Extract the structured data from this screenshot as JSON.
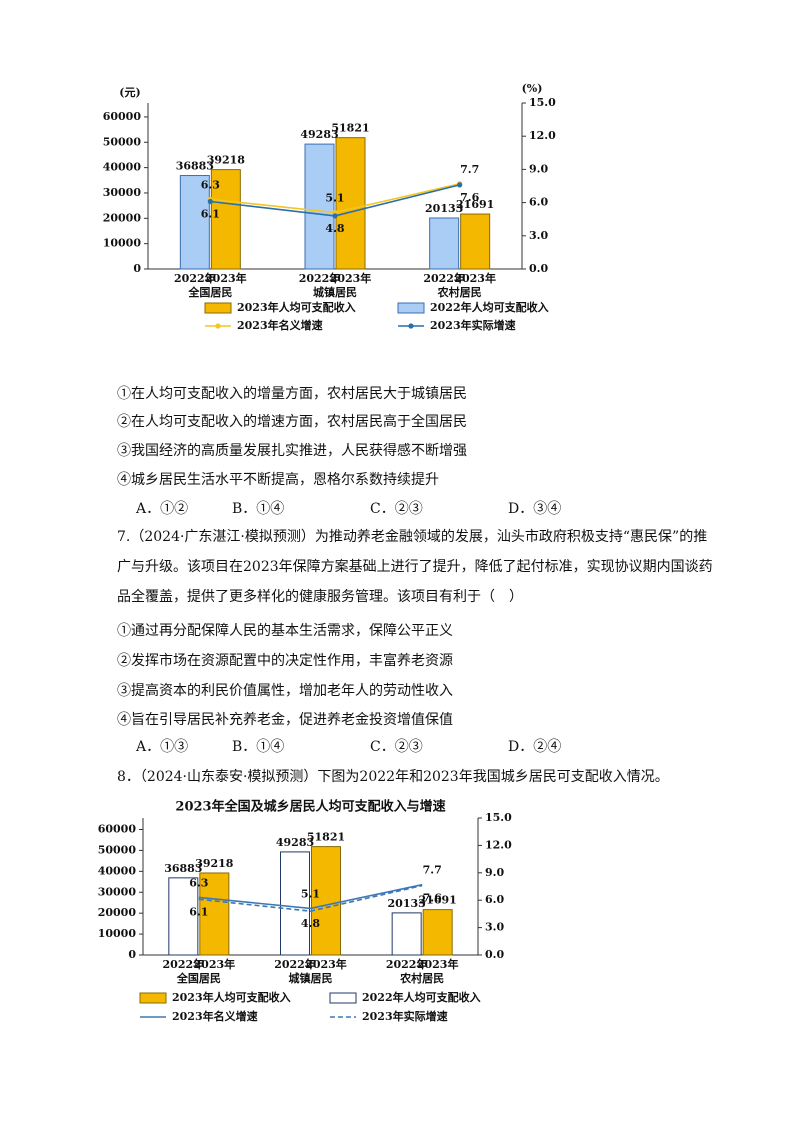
{
  "chart_data": [
    {
      "type": "bar",
      "y_label": "(元)",
      "y2_label": "(%)",
      "categories": [
        "全国居民",
        "城镇居民",
        "农村居民"
      ],
      "x_sublabels": [
        "2022年",
        "2023年"
      ],
      "series": [
        {
          "name": "2023年人均可支配收入",
          "color": "#f5b800",
          "edgecolor": "#8a6a00",
          "values": [
            39218,
            51821,
            21691
          ]
        },
        {
          "name": "2022年人均可支配收入",
          "color": "#a9cdf5",
          "edgecolor": "#3a6fb0",
          "values": [
            36883,
            49283,
            20133
          ]
        },
        {
          "name": "2023年名义增速",
          "type": "line",
          "axis": "y2",
          "color": "#f2c624",
          "marker": "circle",
          "linestyle": "solid",
          "values": [
            6.3,
            5.1,
            7.7
          ]
        },
        {
          "name": "2023年实际增速",
          "type": "line",
          "axis": "y2",
          "color": "#2a6fa8",
          "marker": "circle",
          "linestyle": "solid",
          "values": [
            6.1,
            4.8,
            7.6
          ]
        }
      ],
      "ylim": [
        0,
        65500
      ],
      "yticks": [
        0,
        10000,
        20000,
        30000,
        40000,
        50000,
        60000
      ],
      "y2lim": [
        0,
        15
      ],
      "y2ticks": [
        {
          "value": 0,
          "label": "0.0"
        },
        {
          "value": 3,
          "label": "3.0"
        },
        {
          "value": 6,
          "label": "6.0"
        },
        {
          "value": 9,
          "label": "9.0"
        },
        {
          "value": 12,
          "label": "12.0"
        },
        {
          "value": 15,
          "label": "15.0"
        }
      ],
      "grid": false
    },
    {
      "type": "bar",
      "title": "2023年全国及城乡居民人均可支配收入与增速",
      "categories": [
        "全国居民",
        "城镇居民",
        "农村居民"
      ],
      "x_sublabels": [
        "2022年",
        "2023年"
      ],
      "series": [
        {
          "name": "2023年人均可支配收入",
          "color": "#f5b800",
          "edgecolor": "#8a6a00",
          "values": [
            39218,
            51821,
            21691
          ]
        },
        {
          "name": "2022年人均可支配收入",
          "color": "#ffffff",
          "edgecolor": "#1f3a66",
          "values": [
            36883,
            49283,
            20133
          ]
        },
        {
          "name": "2023年名义增速",
          "type": "line",
          "axis": "y2",
          "color": "#3b78b5",
          "linestyle": "solid",
          "values": [
            6.3,
            5.1,
            7.7
          ]
        },
        {
          "name": "2023年实际增速",
          "type": "line",
          "axis": "y2",
          "color": "#3b78b5",
          "linestyle": "dashed",
          "values": [
            6.1,
            4.8,
            7.6
          ]
        }
      ],
      "ylim": [
        0,
        65500
      ],
      "yticks": [
        0,
        10000,
        20000,
        30000,
        40000,
        50000,
        60000
      ],
      "y2lim": [
        0,
        15
      ],
      "y2ticks": [
        {
          "value": 0,
          "label": "0.0"
        },
        {
          "value": 3,
          "label": "3.0"
        },
        {
          "value": 6,
          "label": "6.0"
        },
        {
          "value": 9,
          "label": "9.0"
        },
        {
          "value": 12,
          "label": "12.0"
        },
        {
          "value": 15,
          "label": "15.0"
        }
      ],
      "grid": false
    }
  ],
  "document": {
    "q6_statements": [
      "①在人均可支配收入的增量方面，农村居民大于城镇居民",
      "②在人均可支配收入的增速方面，农村居民高于全国居民",
      "③我国经济的高质量发展扎实推进，人民获得感不断增强",
      "④城乡居民生活水平不断提高，恩格尔系数持续提升"
    ],
    "q6_choices": [
      "A．①②",
      "B．①④",
      "C．②③",
      "D．③④"
    ],
    "q7_stem": "7.（2024·广东湛江·模拟预测）为推动养老金融领域的发展，汕头市政府积极支持“惠民保”的推广与升级。该项目在2023年保障方案基础上进行了提升，降低了起付标准，实现协议期内国谈药品全覆盖，提供了更多样化的健康服务管理。该项目有利于（　）",
    "q7_statements": [
      "①通过再分配保障人民的基本生活需求，保障公平正义",
      "②发挥市场在资源配置中的决定性作用，丰富养老资源",
      "③提高资本的利民价值属性，增加老年人的劳动性收入",
      "④旨在引导居民补充养老金，促进养老金投资增值保值"
    ],
    "q7_choices": [
      "A．①③",
      "B．①④",
      "C．②③",
      "D．②④"
    ],
    "q8_stem": "8．（2024·山东泰安·模拟预测）下图为2022年和2023年我国城乡居民可支配收入情况。"
  }
}
